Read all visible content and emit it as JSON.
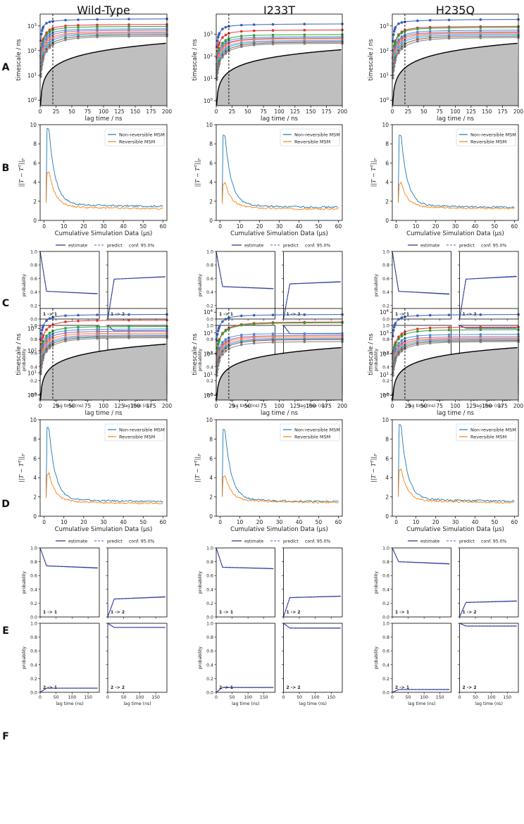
{
  "columns": [
    "Wild-Type",
    "I233T",
    "H235Q"
  ],
  "row_letters": [
    "A",
    "B",
    "C",
    "D",
    "E",
    "F"
  ],
  "labels": {
    "its_ylabel": "timescale / ns",
    "its_xlabel": "lag time / ns",
    "conv_xlabel": "Cumulative Simulation Data (µs)",
    "ck_ylabel": "probability",
    "ck_xlabel": "lag time (ns)",
    "ck_legend": [
      "estimate",
      "predict",
      "conf. 95.0%"
    ],
    "conv_legend": [
      "Non-reversible MSM",
      "Reversible MSM"
    ],
    "ck_panel_labels": [
      "1 -> 1",
      "1 -> 2",
      "2 -> 1",
      "2 -> 2"
    ]
  },
  "colors": {
    "series": [
      "#3b5cb8",
      "#e03030",
      "#2ca02c",
      "#4a8fcf",
      "#9467bd",
      "#f08030",
      "#e377c2",
      "#17becf",
      "#8c564b",
      "#7f7f7f"
    ],
    "nonrev": "#1f77b4",
    "rev": "#ff7f0e",
    "ck": "#1a2a80",
    "gray_area": "#bfbfbf"
  },
  "chart_data": {
    "its": {
      "type": "line",
      "lag_times": [
        1,
        2,
        3,
        4,
        5,
        7,
        10,
        15,
        20,
        25,
        40,
        60,
        90,
        100,
        140,
        200
      ],
      "markers": [
        1,
        2,
        3,
        4,
        5,
        10,
        15,
        20,
        40,
        60,
        90,
        140,
        200
      ],
      "x_ticks": [
        0,
        25,
        50,
        75,
        100,
        125,
        150,
        175,
        200
      ],
      "xlim": [
        0,
        200
      ],
      "vline_x": 20,
      "panels": [
        {
          "title": "Wild-Type",
          "ylim": [
            0.6,
            3000
          ],
          "y_ticks": [
            1,
            10,
            100,
            1000
          ],
          "plateaus": [
            2000,
            1200,
            1000,
            800,
            700,
            600,
            550,
            500,
            450,
            400
          ],
          "tau": [
            4,
            10,
            10,
            10,
            12,
            14,
            16,
            18,
            22,
            25
          ]
        },
        {
          "title": "I233T",
          "ylim": [
            0.6,
            8000
          ],
          "y_ticks": [
            1,
            10,
            100,
            1000
          ],
          "plateaus": [
            3000,
            1600,
            1000,
            800,
            700,
            650,
            550,
            500,
            450,
            400
          ],
          "tau": [
            6,
            10,
            12,
            12,
            14,
            14,
            16,
            18,
            22,
            25
          ]
        },
        {
          "title": "H235Q",
          "ylim": [
            0.6,
            3000
          ],
          "y_ticks": [
            1,
            10,
            100,
            1000
          ],
          "plateaus": [
            1900,
            1000,
            900,
            700,
            600,
            550,
            500,
            450,
            400,
            350
          ],
          "tau": [
            4,
            10,
            10,
            12,
            12,
            14,
            16,
            18,
            22,
            25
          ]
        },
        {
          "title": "Wild-Type",
          "ylim": [
            0.6,
            8000
          ],
          "y_ticks": [
            1,
            10,
            100,
            1000
          ],
          "plateaus": [
            4500,
            2500,
            1300,
            1000,
            800,
            650,
            550,
            500,
            450,
            400
          ],
          "tau": [
            8,
            14,
            14,
            14,
            15,
            16,
            18,
            20,
            22,
            25
          ]
        },
        {
          "title": "I233T",
          "ylim": [
            0.6,
            15000
          ],
          "y_ticks": [
            1,
            10,
            100,
            1000,
            10000
          ],
          "plateaus": [
            8000,
            3500,
            3200,
            1000,
            800,
            700,
            600,
            550,
            500,
            400
          ],
          "tau": [
            10,
            20,
            20,
            14,
            15,
            16,
            18,
            20,
            22,
            25
          ]
        },
        {
          "title": "H235Q",
          "ylim": [
            0.6,
            15000
          ],
          "y_ticks": [
            1,
            10,
            100,
            1000,
            10000
          ],
          "plateaus": [
            8000,
            2000,
            1500,
            900,
            700,
            600,
            550,
            500,
            450,
            400
          ],
          "tau": [
            6,
            16,
            15,
            14,
            15,
            16,
            18,
            20,
            22,
            25
          ]
        }
      ]
    },
    "convergence": {
      "type": "line",
      "x_range": [
        1,
        60
      ],
      "xlim": [
        -2,
        62
      ],
      "x_ticks": [
        0,
        10,
        20,
        30,
        40,
        50,
        60
      ],
      "ylim": [
        0,
        10
      ],
      "y_ticks": [
        0,
        2,
        4,
        6,
        8,
        10
      ],
      "panels": [
        {
          "nonrev_peak": 9.6,
          "nonrev_end": 1.45,
          "rev_peak": 5.0,
          "rev_end": 1.2
        },
        {
          "nonrev_peak": 8.9,
          "nonrev_end": 1.35,
          "rev_peak": 3.8,
          "rev_end": 1.15
        },
        {
          "nonrev_peak": 8.9,
          "nonrev_end": 1.35,
          "rev_peak": 3.8,
          "rev_end": 1.2
        },
        {
          "nonrev_peak": 9.2,
          "nonrev_end": 1.5,
          "rev_peak": 4.3,
          "rev_end": 1.3
        },
        {
          "nonrev_peak": 9.0,
          "nonrev_end": 1.5,
          "rev_peak": 4.1,
          "rev_end": 1.4
        },
        {
          "nonrev_peak": 9.5,
          "nonrev_end": 1.55,
          "rev_peak": 4.8,
          "rev_end": 1.4
        }
      ]
    },
    "ck_test": {
      "type": "line",
      "xlim": [
        0,
        185
      ],
      "x_ticks": [
        0,
        50,
        100,
        150
      ],
      "ylim": [
        0,
        1.0
      ],
      "y_ticks": [
        0,
        0.2,
        0.4,
        0.6,
        0.8,
        1.0
      ],
      "lag_points": [
        0,
        20,
        180
      ],
      "panels": [
        {
          "p11": [
            1,
            0.41,
            0.375
          ],
          "p12": [
            0,
            0.59,
            0.625
          ],
          "p21": [
            0,
            0.08,
            0.08
          ],
          "p22": [
            1,
            0.92,
            0.92
          ]
        },
        {
          "p11": [
            1,
            0.48,
            0.45
          ],
          "p12": [
            0,
            0.52,
            0.55
          ],
          "p21": [
            0,
            0.12,
            0.12
          ],
          "p22": [
            1,
            0.88,
            0.88
          ]
        },
        {
          "p11": [
            1,
            0.41,
            0.37
          ],
          "p12": [
            0,
            0.59,
            0.63
          ],
          "p21": [
            0,
            0.04,
            0.04
          ],
          "p22": [
            1,
            0.96,
            0.96
          ]
        },
        {
          "p11": [
            1,
            0.74,
            0.71
          ],
          "p12": [
            0,
            0.26,
            0.29
          ],
          "p21": [
            0,
            0.06,
            0.06
          ],
          "p22": [
            1,
            0.94,
            0.94
          ]
        },
        {
          "p11": [
            1,
            0.72,
            0.7
          ],
          "p12": [
            0,
            0.28,
            0.3
          ],
          "p21": [
            0,
            0.07,
            0.07
          ],
          "p22": [
            1,
            0.93,
            0.93
          ]
        },
        {
          "p11": [
            1,
            0.8,
            0.77
          ],
          "p12": [
            0,
            0.21,
            0.23
          ],
          "p21": [
            0,
            0.04,
            0.04
          ],
          "p22": [
            1,
            0.96,
            0.96
          ]
        }
      ]
    }
  }
}
